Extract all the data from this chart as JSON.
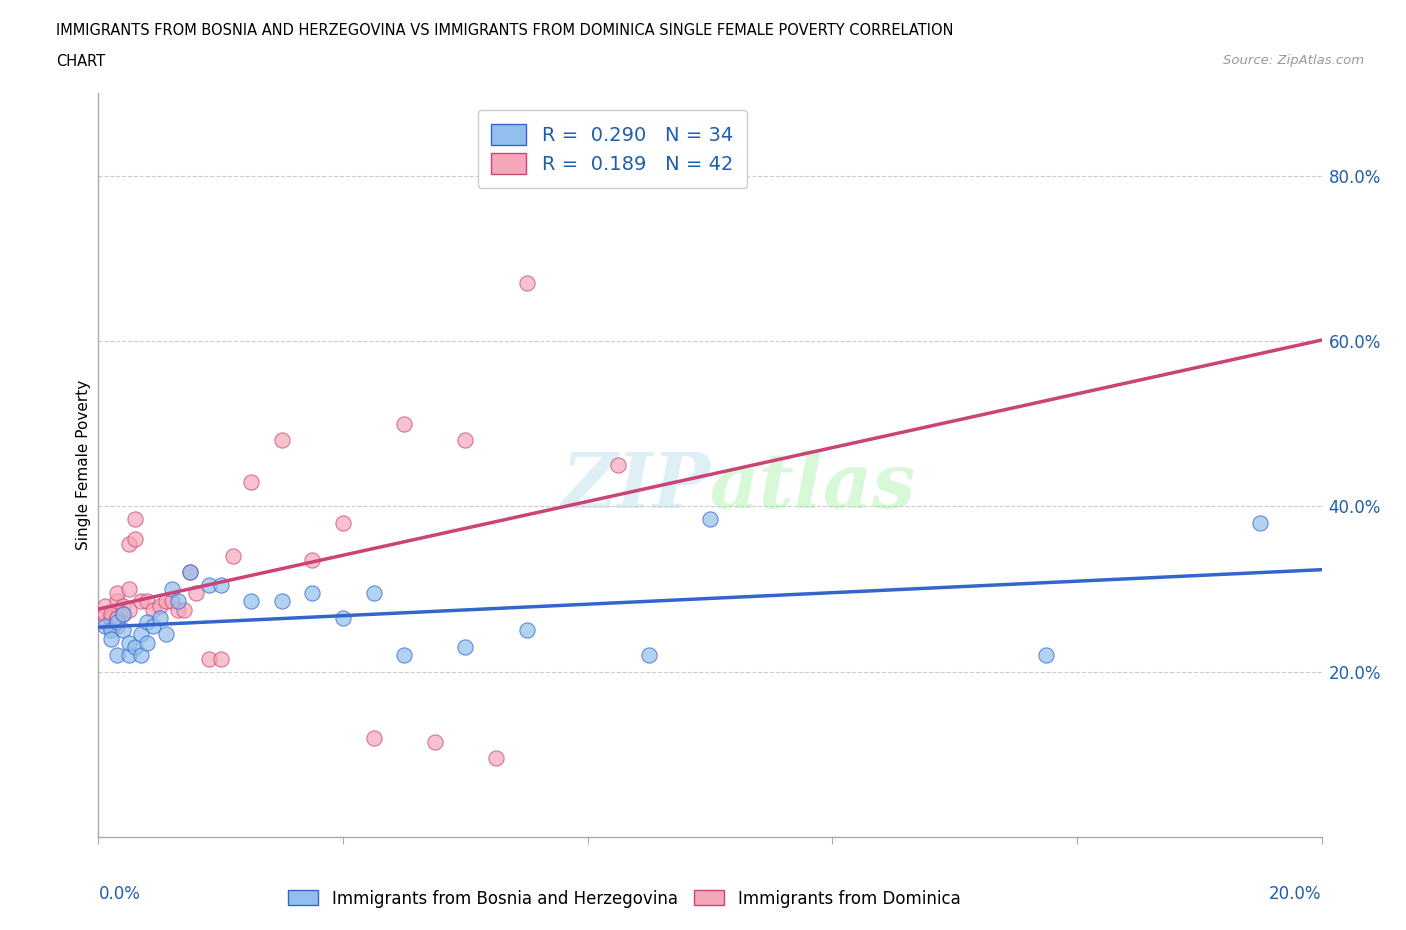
{
  "title_line1": "IMMIGRANTS FROM BOSNIA AND HERZEGOVINA VS IMMIGRANTS FROM DOMINICA SINGLE FEMALE POVERTY CORRELATION",
  "title_line2": "CHART",
  "source": "Source: ZipAtlas.com",
  "ylabel": "Single Female Poverty",
  "yticks": [
    "20.0%",
    "40.0%",
    "60.0%",
    "80.0%"
  ],
  "ytick_vals": [
    0.2,
    0.4,
    0.6,
    0.8
  ],
  "xrange": [
    0.0,
    0.2
  ],
  "yrange": [
    0.0,
    0.9
  ],
  "watermark": "ZIPatlas",
  "color_blue": "#92BFED",
  "color_pink": "#F4A7B9",
  "color_blue_line": "#3366CC",
  "color_pink_line": "#CC4477",
  "color_blue_dark": "#1F5EAA",
  "color_pink_dark": "#D06080",
  "label_bosnia": "Immigrants from Bosnia and Herzegovina",
  "label_dominica": "Immigrants from Dominica",
  "bosnia_x": [
    0.001,
    0.002,
    0.002,
    0.003,
    0.003,
    0.004,
    0.004,
    0.005,
    0.005,
    0.006,
    0.007,
    0.007,
    0.008,
    0.008,
    0.009,
    0.01,
    0.011,
    0.012,
    0.013,
    0.015,
    0.018,
    0.02,
    0.025,
    0.03,
    0.035,
    0.04,
    0.045,
    0.05,
    0.06,
    0.07,
    0.09,
    0.1,
    0.155,
    0.19
  ],
  "bosnia_y": [
    0.255,
    0.25,
    0.24,
    0.26,
    0.22,
    0.25,
    0.27,
    0.22,
    0.235,
    0.23,
    0.245,
    0.22,
    0.235,
    0.26,
    0.255,
    0.265,
    0.245,
    0.3,
    0.285,
    0.32,
    0.305,
    0.305,
    0.285,
    0.285,
    0.295,
    0.265,
    0.295,
    0.22,
    0.23,
    0.25,
    0.22,
    0.385,
    0.22,
    0.38
  ],
  "dominica_x": [
    0.001,
    0.001,
    0.001,
    0.002,
    0.002,
    0.002,
    0.003,
    0.003,
    0.003,
    0.003,
    0.003,
    0.004,
    0.004,
    0.005,
    0.005,
    0.005,
    0.006,
    0.006,
    0.007,
    0.008,
    0.009,
    0.01,
    0.011,
    0.012,
    0.013,
    0.014,
    0.015,
    0.016,
    0.018,
    0.02,
    0.022,
    0.025,
    0.03,
    0.035,
    0.04,
    0.045,
    0.05,
    0.055,
    0.06,
    0.065,
    0.07,
    0.085
  ],
  "dominica_y": [
    0.26,
    0.28,
    0.27,
    0.255,
    0.265,
    0.27,
    0.265,
    0.255,
    0.265,
    0.285,
    0.295,
    0.28,
    0.27,
    0.275,
    0.3,
    0.355,
    0.36,
    0.385,
    0.285,
    0.285,
    0.275,
    0.28,
    0.285,
    0.285,
    0.275,
    0.275,
    0.32,
    0.295,
    0.215,
    0.215,
    0.34,
    0.43,
    0.48,
    0.335,
    0.38,
    0.12,
    0.5,
    0.115,
    0.48,
    0.095,
    0.67,
    0.45
  ]
}
